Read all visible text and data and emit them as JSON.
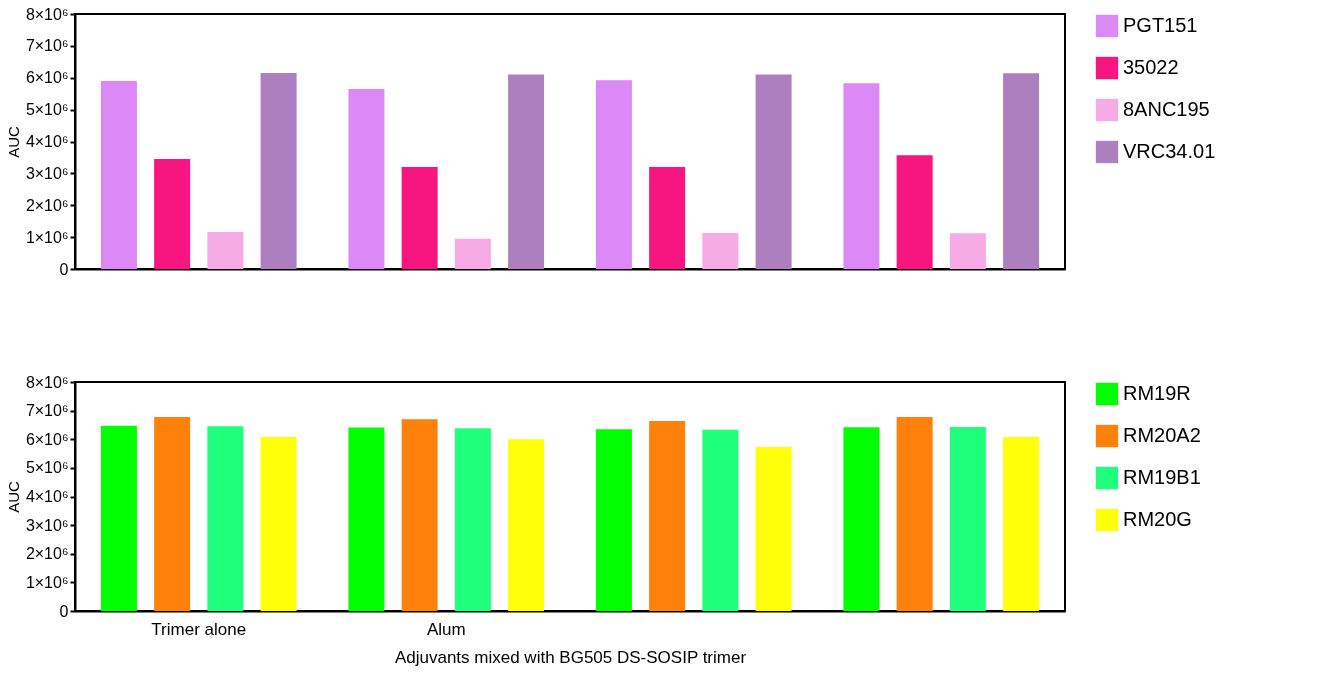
{
  "chart_data": [
    {
      "type": "bar",
      "categories": [
        null,
        null,
        null,
        null
      ],
      "ylabel": "AUC",
      "ylim": [
        0,
        8000000
      ],
      "yticks": [
        0,
        {
          "value": 1000000,
          "label": "1×10⁶"
        },
        {
          "value": 2000000,
          "label": "2×10⁶"
        },
        {
          "value": 3000000,
          "label": "3×10⁶"
        },
        {
          "value": 4000000,
          "label": "4×10⁶"
        },
        {
          "value": 5000000,
          "label": "5×10⁶"
        },
        {
          "value": 6000000,
          "label": "6×10⁶"
        },
        {
          "value": 7000000,
          "label": "7×10⁶"
        },
        {
          "value": 8000000,
          "label": "8×10⁶"
        }
      ],
      "tick_labels": "y",
      "legend": "right",
      "grid": false,
      "series": [
        {
          "name": "PGT151",
          "color": "#dc89f7",
          "values": [
            5900000,
            5650000,
            5920000,
            5830000
          ]
        },
        {
          "name": "35022",
          "color": "#f7157f",
          "values": [
            3450000,
            3200000,
            3200000,
            3570000
          ]
        },
        {
          "name": "8ANC195",
          "color": "#f6aae6",
          "values": [
            1160000,
            950000,
            1130000,
            1120000
          ]
        },
        {
          "name": "VRC34.01",
          "color": "#ad7fbf",
          "values": [
            6150000,
            6100000,
            6100000,
            6140000
          ]
        }
      ]
    },
    {
      "type": "bar",
      "categories": [
        "Trimer alone",
        "Alum",
        null,
        null
      ],
      "ylabel": "AUC",
      "xlabel": "Adjuvants mixed with BG505 DS-SOSIP trimer",
      "ylim": [
        0,
        8000000
      ],
      "yticks": [
        0,
        {
          "value": 1000000,
          "label": "1×10⁶"
        },
        {
          "value": 2000000,
          "label": "2×10⁶"
        },
        {
          "value": 3000000,
          "label": "3×10⁶"
        },
        {
          "value": 4000000,
          "label": "4×10⁶"
        },
        {
          "value": 5000000,
          "label": "5×10⁶"
        },
        {
          "value": 6000000,
          "label": "6×10⁶"
        },
        {
          "value": 7000000,
          "label": "7×10⁶"
        },
        {
          "value": 8000000,
          "label": "8×10⁶"
        }
      ],
      "legend": "right",
      "grid": false,
      "series": [
        {
          "name": "RM19R",
          "color": "#00ff00",
          "values": [
            6470000,
            6410000,
            6350000,
            6420000
          ]
        },
        {
          "name": "RM20A2",
          "color": "#ff800b",
          "values": [
            6780000,
            6700000,
            6640000,
            6780000
          ]
        },
        {
          "name": "RM19B1",
          "color": "#20ff7b",
          "values": [
            6450000,
            6380000,
            6330000,
            6430000
          ]
        },
        {
          "name": "RM20G",
          "color": "#ffff0a",
          "values": [
            6080000,
            6000000,
            5730000,
            6080000
          ]
        }
      ]
    }
  ]
}
